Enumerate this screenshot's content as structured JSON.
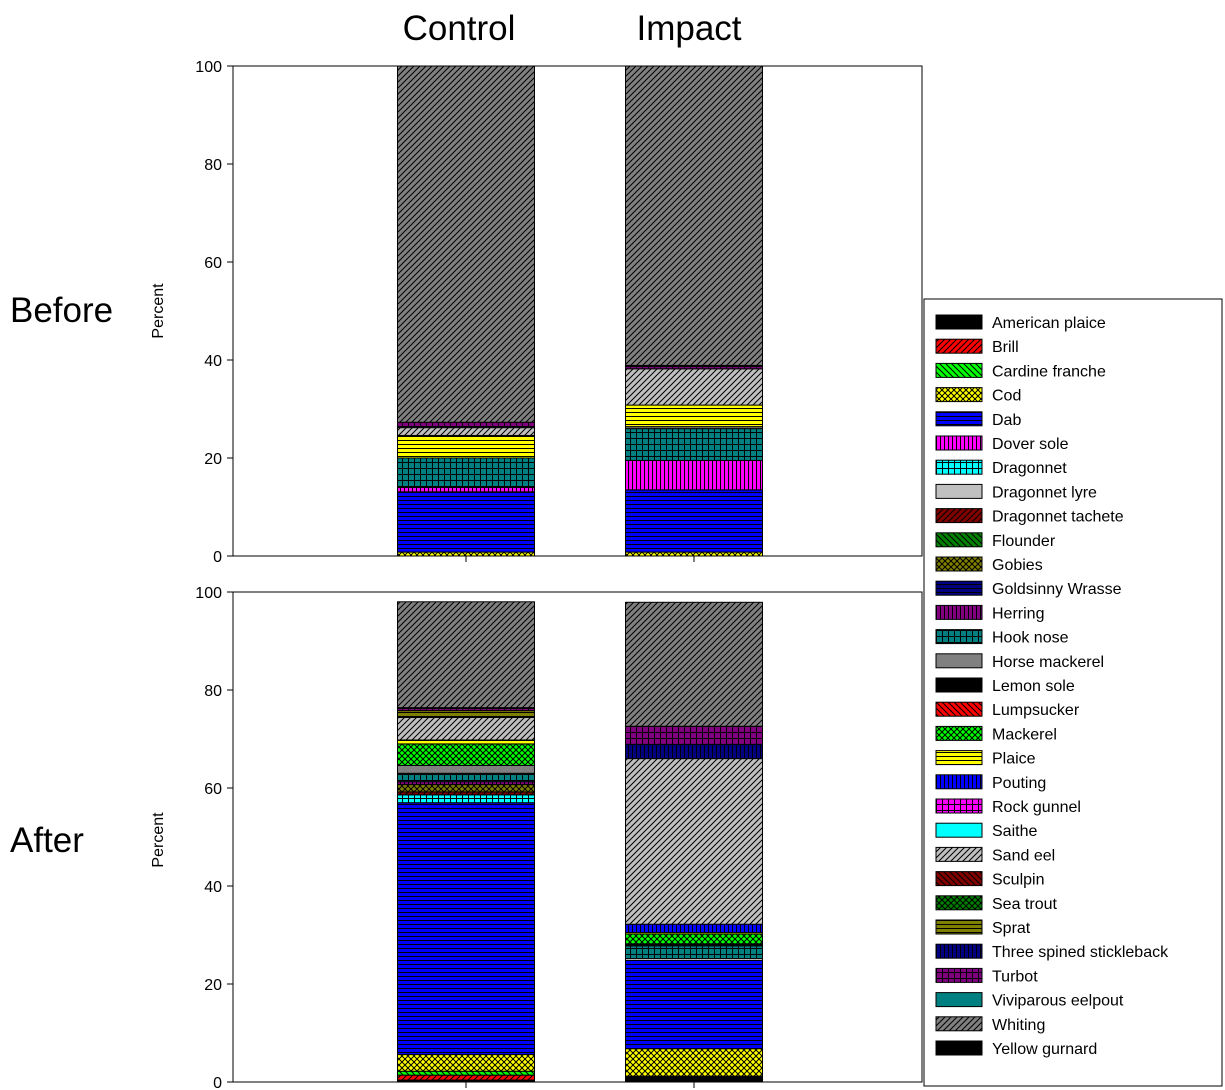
{
  "labels": {
    "columns": [
      "Control",
      "Impact"
    ],
    "rows": [
      "Before",
      "After"
    ]
  },
  "chart_data": [
    {
      "type": "bar",
      "stacked": true,
      "panel": "Before",
      "categories": [
        "Control",
        "Impact"
      ],
      "ylabel": "Percent",
      "ylim": [
        0,
        100
      ],
      "yticks": [
        0,
        20,
        40,
        60,
        80,
        100
      ],
      "series": [
        {
          "name": "American plaice",
          "values": [
            0,
            0
          ]
        },
        {
          "name": "Brill",
          "values": [
            0,
            0
          ]
        },
        {
          "name": "Cardine franche",
          "values": [
            0,
            0
          ]
        },
        {
          "name": "Cod",
          "values": [
            0.8,
            0.8
          ]
        },
        {
          "name": "Dab",
          "values": [
            12.3,
            12.7
          ]
        },
        {
          "name": "Dover sole",
          "values": [
            0.9,
            6.0
          ]
        },
        {
          "name": "Dragonnet",
          "values": [
            0,
            0
          ]
        },
        {
          "name": "Dragonnet lyre",
          "values": [
            0,
            0
          ]
        },
        {
          "name": "Dragonnet tachete",
          "values": [
            0,
            0
          ]
        },
        {
          "name": "Flounder",
          "values": [
            0,
            0
          ]
        },
        {
          "name": "Gobies",
          "values": [
            0,
            0
          ]
        },
        {
          "name": "Goldsinny Wrasse",
          "values": [
            0,
            0
          ]
        },
        {
          "name": "Herring",
          "values": [
            0,
            0
          ]
        },
        {
          "name": "Hook nose",
          "values": [
            6.0,
            6.5
          ]
        },
        {
          "name": "Horse mackerel",
          "values": [
            0,
            0.4
          ]
        },
        {
          "name": "Lemon sole",
          "values": [
            0,
            0
          ]
        },
        {
          "name": "Lumpsucker",
          "values": [
            0,
            0
          ]
        },
        {
          "name": "Mackerel",
          "values": [
            0,
            0
          ]
        },
        {
          "name": "Plaice",
          "values": [
            4.6,
            4.4
          ]
        },
        {
          "name": "Pouting",
          "values": [
            0,
            0
          ]
        },
        {
          "name": "Rock gunnel",
          "values": [
            0,
            0
          ]
        },
        {
          "name": "Saithe",
          "values": [
            0,
            0
          ]
        },
        {
          "name": "Sand eel",
          "values": [
            1.6,
            7.4
          ]
        },
        {
          "name": "Sculpin",
          "values": [
            0,
            0
          ]
        },
        {
          "name": "Sea trout",
          "values": [
            0,
            0
          ]
        },
        {
          "name": "Sprat",
          "values": [
            0,
            0
          ]
        },
        {
          "name": "Three spined stickleback",
          "values": [
            0,
            0
          ]
        },
        {
          "name": "Turbot",
          "values": [
            1.1,
            0.7
          ]
        },
        {
          "name": "Viviparous eelpout",
          "values": [
            0,
            0
          ]
        },
        {
          "name": "Whiting",
          "values": [
            72.7,
            61.1
          ]
        },
        {
          "name": "Yellow gurnard",
          "values": [
            0,
            0
          ]
        }
      ]
    },
    {
      "type": "bar",
      "stacked": true,
      "panel": "After",
      "categories": [
        "Control",
        "Impact"
      ],
      "ylabel": "Percent",
      "ylim": [
        0,
        100
      ],
      "yticks": [
        0,
        20,
        40,
        60,
        80,
        100
      ],
      "series": [
        {
          "name": "American plaice",
          "values": [
            0.4,
            1.2
          ]
        },
        {
          "name": "Brill",
          "values": [
            1.0,
            0
          ]
        },
        {
          "name": "Cardine franche",
          "values": [
            0.8,
            0
          ]
        },
        {
          "name": "Cod",
          "values": [
            3.4,
            5.6
          ]
        },
        {
          "name": "Dab",
          "values": [
            51.4,
            18.0
          ]
        },
        {
          "name": "Dover sole",
          "values": [
            0,
            0
          ]
        },
        {
          "name": "Dragonnet",
          "values": [
            1.6,
            0
          ]
        },
        {
          "name": "Dragonnet lyre",
          "values": [
            0,
            0.4
          ]
        },
        {
          "name": "Dragonnet tachete",
          "values": [
            0.6,
            0
          ]
        },
        {
          "name": "Flounder",
          "values": [
            0,
            0
          ]
        },
        {
          "name": "Gobies",
          "values": [
            1.5,
            0
          ]
        },
        {
          "name": "Goldsinny Wrasse",
          "values": [
            0,
            0
          ]
        },
        {
          "name": "Herring",
          "values": [
            0.6,
            0
          ]
        },
        {
          "name": "Hook nose",
          "values": [
            1.7,
            2.6
          ]
        },
        {
          "name": "Horse mackerel",
          "values": [
            1.6,
            0
          ]
        },
        {
          "name": "Lemon sole",
          "values": [
            0,
            0.4
          ]
        },
        {
          "name": "Lumpsucker",
          "values": [
            0,
            0
          ]
        },
        {
          "name": "Mackerel",
          "values": [
            4.4,
            2.0
          ]
        },
        {
          "name": "Plaice",
          "values": [
            0.8,
            0.3
          ]
        },
        {
          "name": "Pouting",
          "values": [
            0,
            1.7
          ]
        },
        {
          "name": "Rock gunnel",
          "values": [
            0,
            0
          ]
        },
        {
          "name": "Saithe",
          "values": [
            0,
            0
          ]
        },
        {
          "name": "Sand eel",
          "values": [
            4.6,
            33.8
          ]
        },
        {
          "name": "Sculpin",
          "values": [
            0,
            0
          ]
        },
        {
          "name": "Sea trout",
          "values": [
            0,
            0
          ]
        },
        {
          "name": "Sprat",
          "values": [
            1.4,
            0
          ]
        },
        {
          "name": "Three spined stickleback",
          "values": [
            0,
            2.9
          ]
        },
        {
          "name": "Turbot",
          "values": [
            0.6,
            3.7
          ]
        },
        {
          "name": "Viviparous eelpout",
          "values": [
            0,
            0
          ]
        },
        {
          "name": "Whiting",
          "values": [
            21.6,
            25.3
          ]
        },
        {
          "name": "Yellow gurnard",
          "values": [
            0,
            0
          ]
        }
      ]
    }
  ],
  "legend": {
    "placement": "right",
    "items": [
      {
        "name": "American plaice",
        "color": "#000000",
        "pattern": "solid"
      },
      {
        "name": "Brill",
        "color": "#ff0000",
        "pattern": "diag"
      },
      {
        "name": "Cardine franche",
        "color": "#00ff00",
        "pattern": "backdiag"
      },
      {
        "name": "Cod",
        "color": "#ffff00",
        "pattern": "cross"
      },
      {
        "name": "Dab",
        "color": "#0000ff",
        "pattern": "hlines"
      },
      {
        "name": "Dover sole",
        "color": "#ff00ff",
        "pattern": "vlines"
      },
      {
        "name": "Dragonnet",
        "color": "#00ffff",
        "pattern": "grid"
      },
      {
        "name": "Dragonnet lyre",
        "color": "#c0c0c0",
        "pattern": "solid"
      },
      {
        "name": "Dragonnet tachete",
        "color": "#800000",
        "pattern": "diag"
      },
      {
        "name": "Flounder",
        "color": "#008000",
        "pattern": "backdiag"
      },
      {
        "name": "Gobies",
        "color": "#808000",
        "pattern": "cross"
      },
      {
        "name": "Goldsinny Wrasse",
        "color": "#000080",
        "pattern": "hlines"
      },
      {
        "name": "Herring",
        "color": "#800080",
        "pattern": "vlines"
      },
      {
        "name": "Hook nose",
        "color": "#008080",
        "pattern": "grid"
      },
      {
        "name": "Horse mackerel",
        "color": "#808080",
        "pattern": "solid"
      },
      {
        "name": "Lemon sole",
        "color": "#000000",
        "pattern": "diag"
      },
      {
        "name": "Lumpsucker",
        "color": "#ff0000",
        "pattern": "backdiag"
      },
      {
        "name": "Mackerel",
        "color": "#00ff00",
        "pattern": "cross"
      },
      {
        "name": "Plaice",
        "color": "#ffff00",
        "pattern": "hlines"
      },
      {
        "name": "Pouting",
        "color": "#0000ff",
        "pattern": "vlines"
      },
      {
        "name": "Rock gunnel",
        "color": "#ff00ff",
        "pattern": "grid"
      },
      {
        "name": "Saithe",
        "color": "#00ffff",
        "pattern": "solid"
      },
      {
        "name": "Sand eel",
        "color": "#c0c0c0",
        "pattern": "diag"
      },
      {
        "name": "Sculpin",
        "color": "#800000",
        "pattern": "backdiag"
      },
      {
        "name": "Sea trout",
        "color": "#008000",
        "pattern": "cross"
      },
      {
        "name": "Sprat",
        "color": "#808000",
        "pattern": "hlines"
      },
      {
        "name": "Three spined stickleback",
        "color": "#000080",
        "pattern": "vlines"
      },
      {
        "name": "Turbot",
        "color": "#800080",
        "pattern": "grid"
      },
      {
        "name": "Viviparous eelpout",
        "color": "#008080",
        "pattern": "solid"
      },
      {
        "name": "Whiting",
        "color": "#808080",
        "pattern": "diag"
      },
      {
        "name": "Yellow gurnard",
        "color": "#000000",
        "pattern": "backdiag"
      }
    ]
  }
}
